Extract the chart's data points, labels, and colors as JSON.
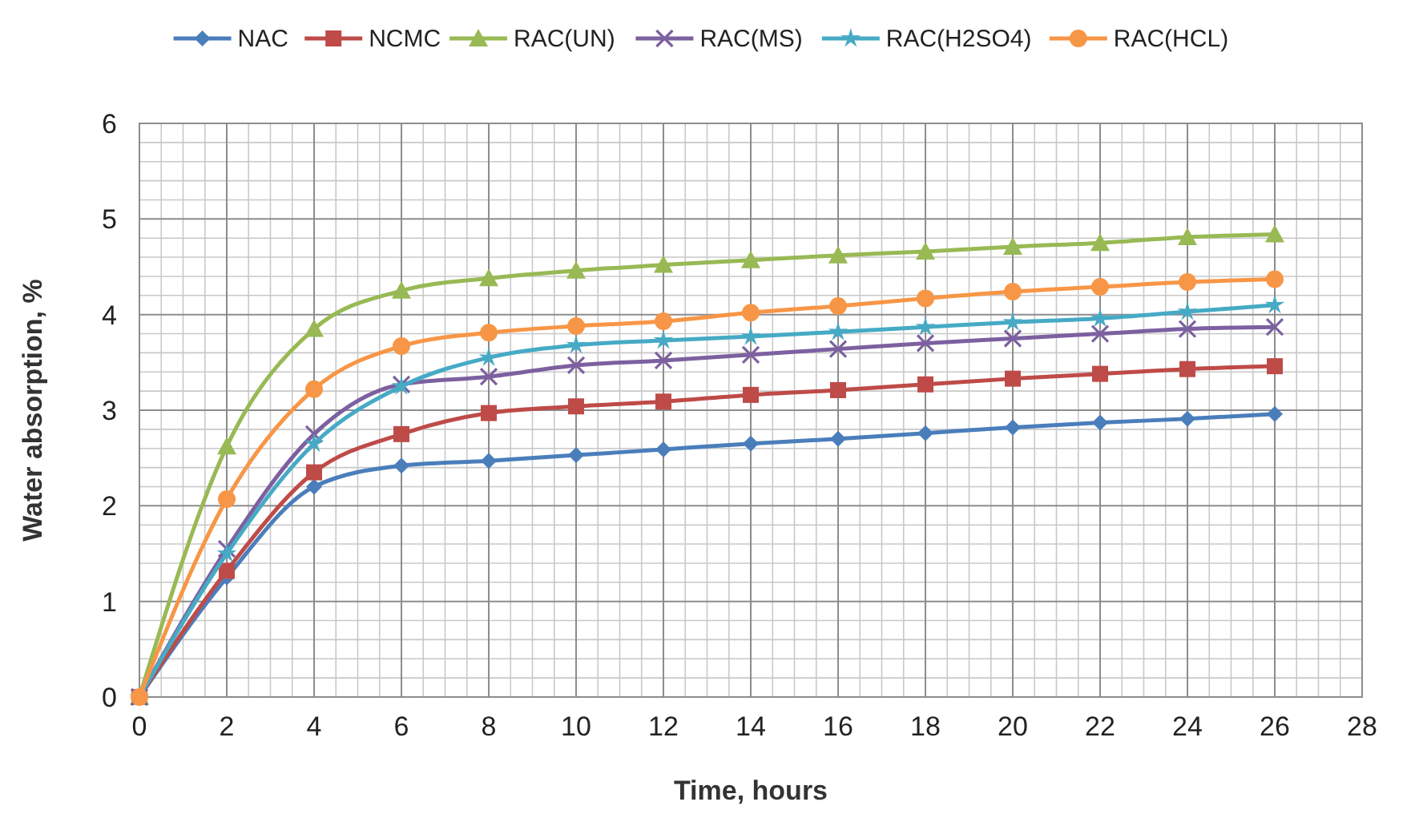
{
  "chart_data": {
    "type": "line",
    "xlabel": "Time, hours",
    "ylabel": "Water absorption, %",
    "x": [
      0,
      2,
      4,
      6,
      8,
      10,
      12,
      14,
      16,
      18,
      20,
      22,
      24,
      26
    ],
    "xlim": [
      0,
      28
    ],
    "xticks": [
      0,
      2,
      4,
      6,
      8,
      10,
      12,
      14,
      16,
      18,
      20,
      22,
      24,
      26,
      28
    ],
    "ylim": [
      0,
      6
    ],
    "yticks": [
      0,
      1,
      2,
      3,
      4,
      5,
      6
    ],
    "grid": true,
    "legend": "top",
    "series": [
      {
        "name": "NAC",
        "color": "#4a7ebb",
        "marker": "diamond",
        "values": [
          0,
          1.25,
          2.2,
          2.42,
          2.47,
          2.53,
          2.59,
          2.65,
          2.7,
          2.76,
          2.82,
          2.87,
          2.91,
          2.96
        ]
      },
      {
        "name": "NCMC",
        "color": "#be4b48",
        "marker": "square",
        "values": [
          0,
          1.32,
          2.35,
          2.75,
          2.97,
          3.04,
          3.09,
          3.16,
          3.21,
          3.27,
          3.33,
          3.38,
          3.43,
          3.46
        ]
      },
      {
        "name": "RAC(UN)",
        "color": "#98b954",
        "marker": "triangle",
        "values": [
          0,
          2.62,
          3.85,
          4.25,
          4.38,
          4.46,
          4.52,
          4.57,
          4.62,
          4.66,
          4.71,
          4.75,
          4.81,
          4.84
        ]
      },
      {
        "name": "RAC(MS)",
        "color": "#7d60a0",
        "marker": "cross",
        "values": [
          0,
          1.55,
          2.75,
          3.27,
          3.35,
          3.47,
          3.52,
          3.58,
          3.64,
          3.7,
          3.75,
          3.8,
          3.85,
          3.87
        ]
      },
      {
        "name": "RAC(H2SO4)",
        "color": "#46aac5",
        "marker": "star",
        "values": [
          0,
          1.5,
          2.65,
          3.25,
          3.55,
          3.68,
          3.73,
          3.77,
          3.82,
          3.87,
          3.92,
          3.96,
          4.03,
          4.1
        ]
      },
      {
        "name": "RAC(HCL)",
        "color": "#f79646",
        "marker": "circle",
        "values": [
          0,
          2.07,
          3.22,
          3.67,
          3.81,
          3.88,
          3.93,
          4.02,
          4.09,
          4.17,
          4.24,
          4.29,
          4.34,
          4.37
        ]
      }
    ]
  }
}
